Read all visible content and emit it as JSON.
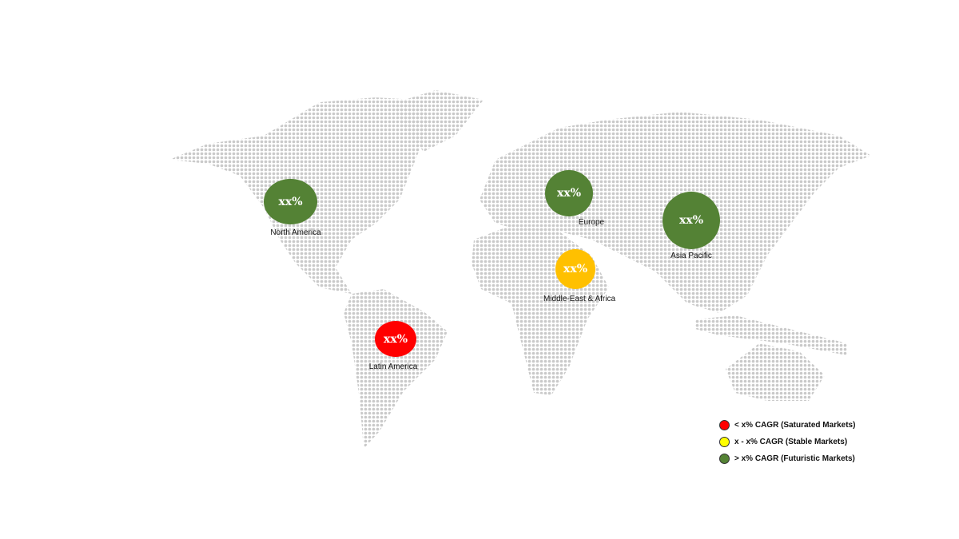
{
  "colors": {
    "futuristic": "#548235",
    "saturated": "#ff0000",
    "stable_bubble": "#ffc000",
    "stable_legend": "#ffff00",
    "map_dots": "#c9c9c9"
  },
  "regions": [
    {
      "name": "North America",
      "value": "xx%",
      "category": "futuristic"
    },
    {
      "name": "Europe",
      "value": "xx%",
      "category": "futuristic"
    },
    {
      "name": "Asia Pacific",
      "value": "xx%",
      "category": "futuristic"
    },
    {
      "name": "Middle-East & Africa",
      "value": "xx%",
      "category": "stable"
    },
    {
      "name": "Latin America",
      "value": "xx%",
      "category": "saturated"
    }
  ],
  "legend": [
    {
      "label": "< x% CAGR (Saturated Markets)",
      "color": "#ff0000"
    },
    {
      "label": "x - x% CAGR (Stable Markets)",
      "color": "#ffff00"
    },
    {
      "label": "> x% CAGR (Futuristic Markets)",
      "color": "#548235"
    }
  ]
}
